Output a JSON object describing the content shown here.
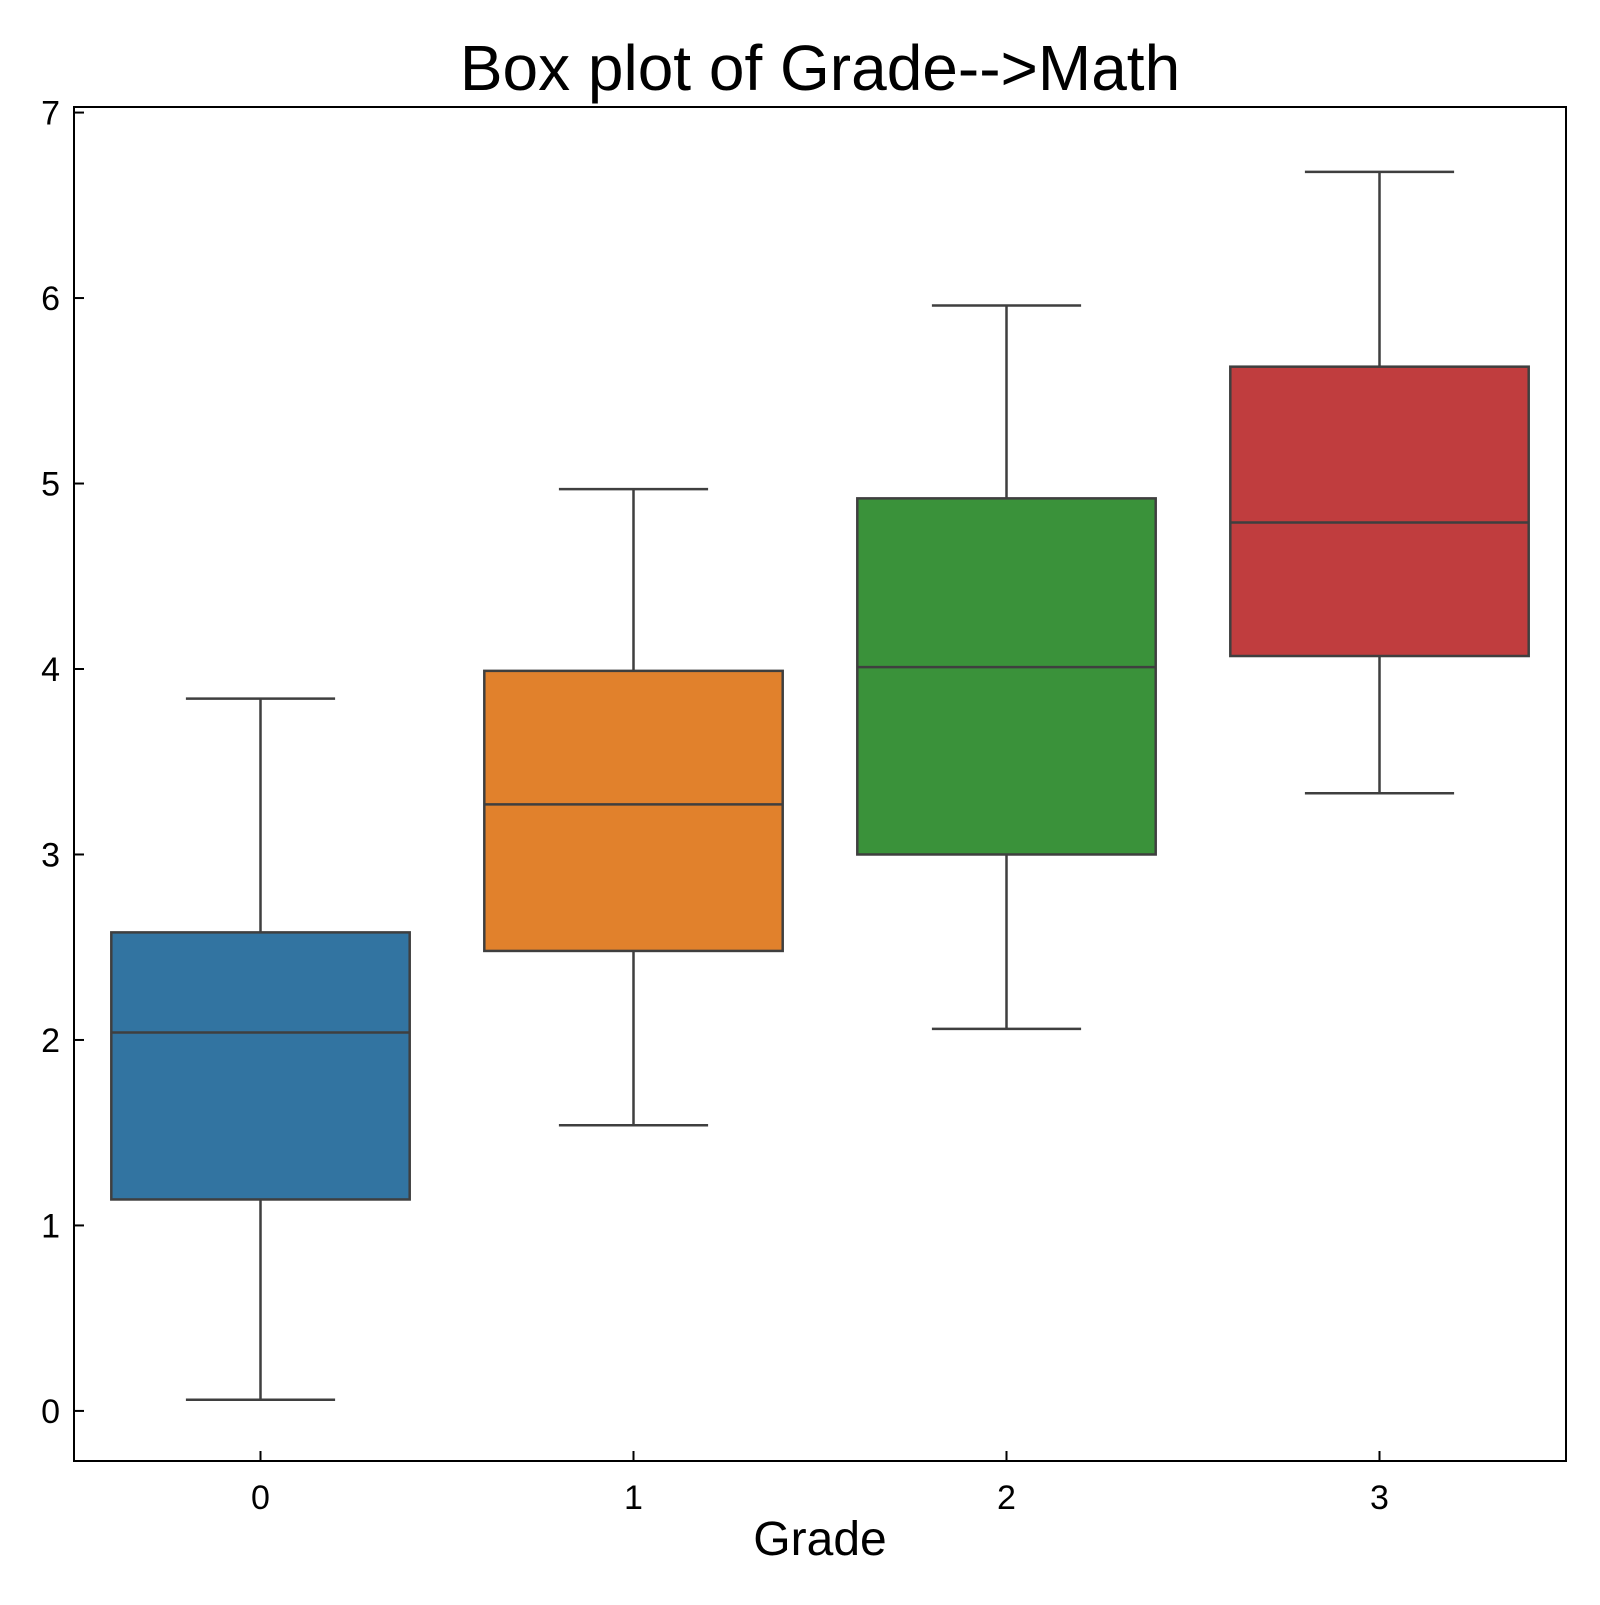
{
  "chart_data": {
    "type": "box",
    "title": "Box plot of Grade-->Math",
    "xlabel": "Grade",
    "ylabel": "",
    "categories": [
      "0",
      "1",
      "2",
      "3"
    ],
    "x_ticks": [
      "0",
      "1",
      "2",
      "3"
    ],
    "y_ticks": [
      "0",
      "1",
      "2",
      "3",
      "4",
      "5",
      "6",
      "7"
    ],
    "ylim": [
      -0.27,
      7.03
    ],
    "grid": false,
    "legend": "none",
    "boxes": [
      {
        "category": "0",
        "whisker_low": 0.06,
        "q1": 1.14,
        "median": 2.04,
        "q3": 2.58,
        "whisker_high": 3.84,
        "color": "#3274a1"
      },
      {
        "category": "1",
        "whisker_low": 1.54,
        "q1": 2.48,
        "median": 3.27,
        "q3": 3.99,
        "whisker_high": 4.97,
        "color": "#e1812c"
      },
      {
        "category": "2",
        "whisker_low": 2.06,
        "q1": 3.0,
        "median": 4.01,
        "q3": 4.92,
        "whisker_high": 5.96,
        "color": "#3a923a"
      },
      {
        "category": "3",
        "whisker_low": 3.33,
        "q1": 4.07,
        "median": 4.79,
        "q3": 5.63,
        "whisker_high": 6.68,
        "color": "#c03d3e"
      }
    ],
    "box_edge_color": "#3f3f3f"
  }
}
